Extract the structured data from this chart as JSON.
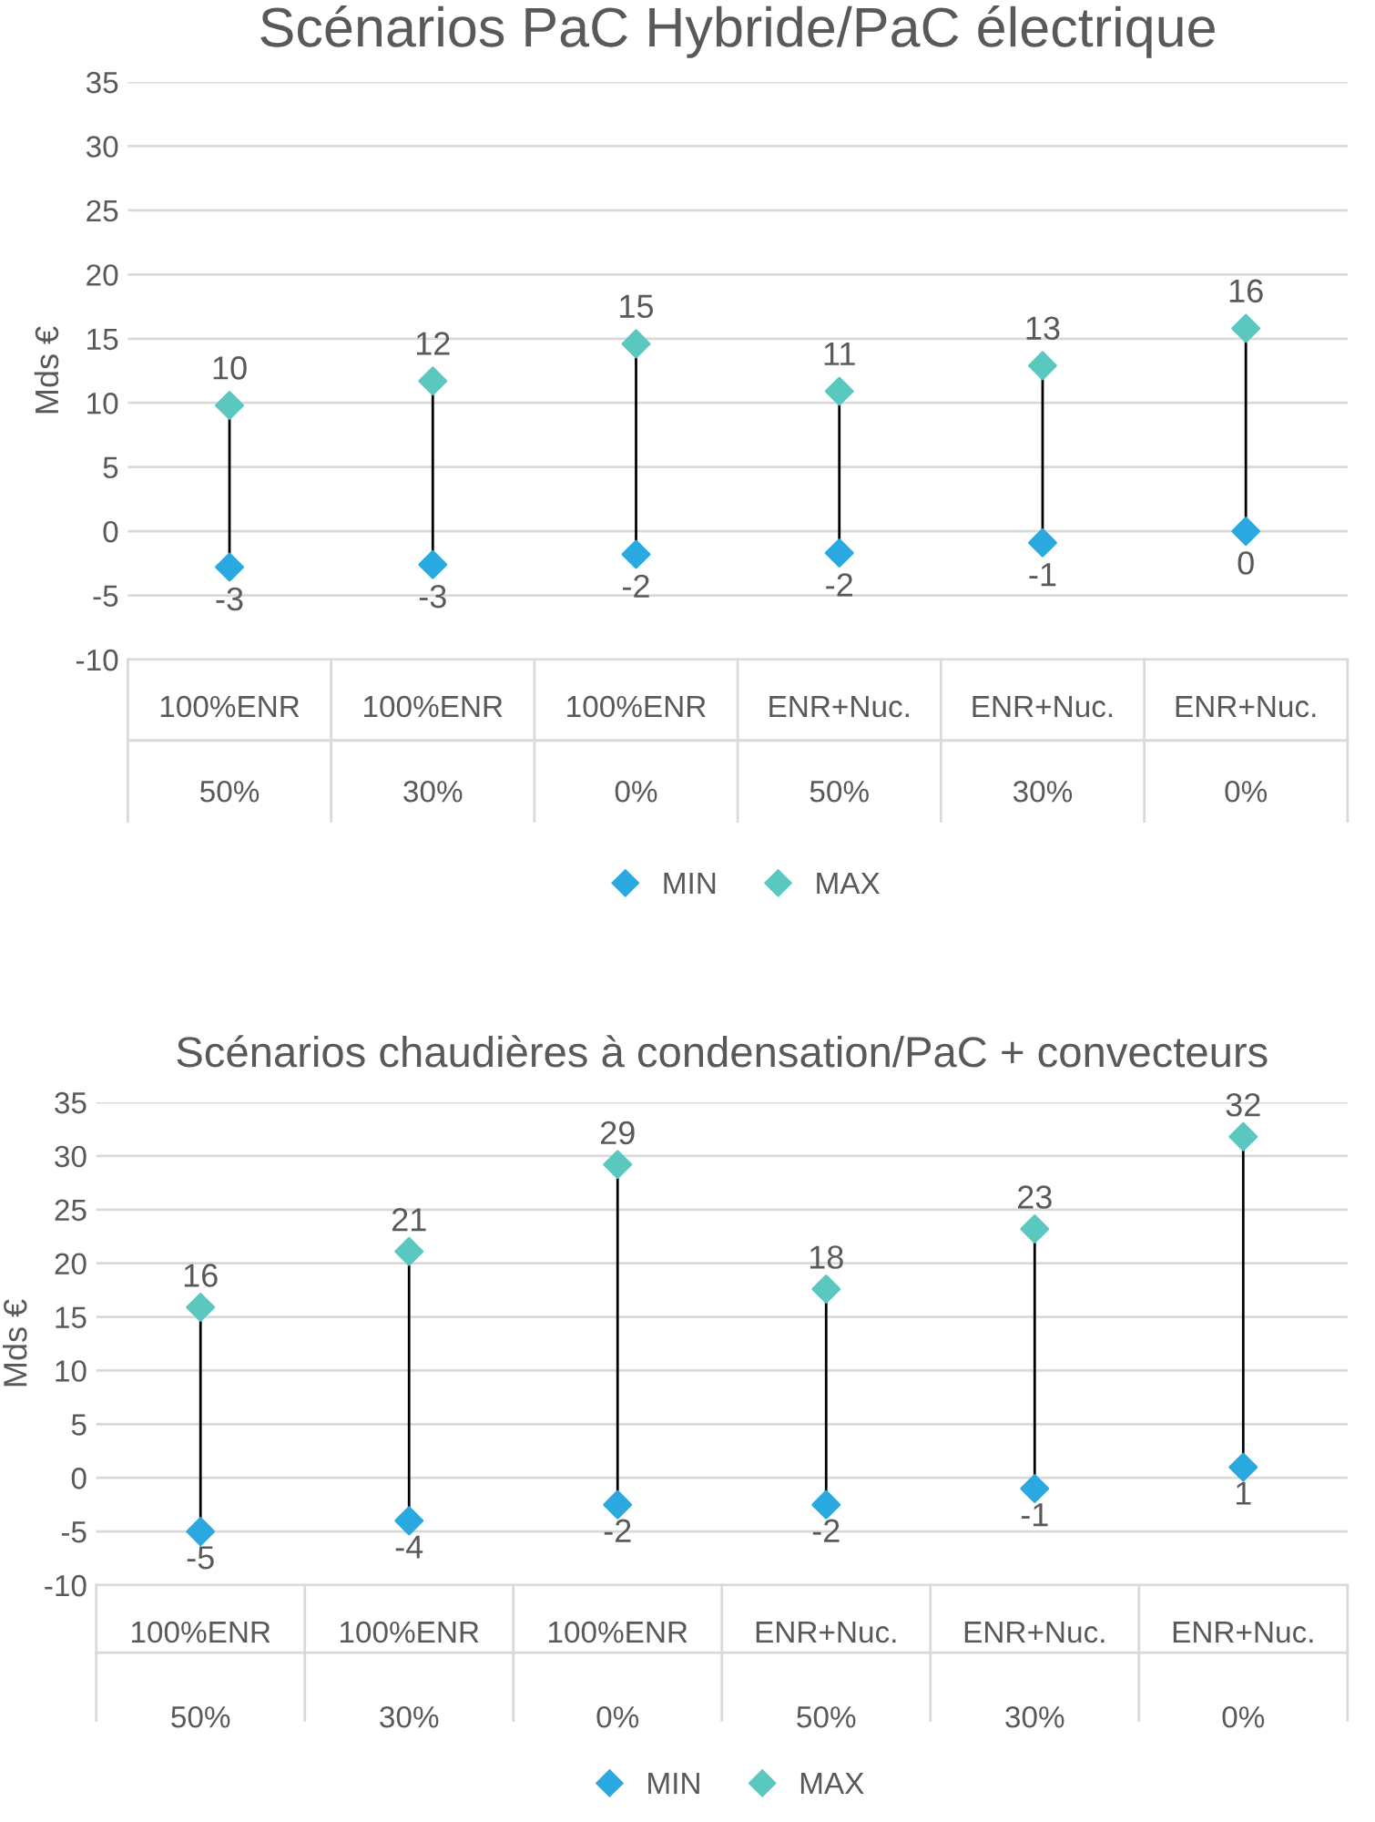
{
  "chart_data": [
    {
      "type": "scatter",
      "title": "Scénarios PaC Hybride/PaC électrique",
      "ylabel": "Mds €",
      "categories": [
        "100%ENR\n50%",
        "100%ENR\n30%",
        "100%ENR\n0%",
        "ENR+Nuc.\n50%",
        "ENR+Nuc.\n30%",
        "ENR+Nuc.\n0%"
      ],
      "series": [
        {
          "name": "MIN",
          "color": "#29a9e0",
          "values": [
            -2.8,
            -2.6,
            -1.8,
            -1.7,
            -0.9,
            0
          ],
          "value_labels": [
            "-3",
            "-3",
            "-2",
            "-2",
            "-1",
            "0"
          ]
        },
        {
          "name": "MAX",
          "color": "#5bc8c0",
          "values": [
            9.8,
            11.7,
            14.6,
            10.9,
            12.9,
            15.8
          ],
          "value_labels": [
            "10",
            "12",
            "15",
            "11",
            "13",
            "16"
          ]
        }
      ],
      "ylim": [
        -10,
        35
      ],
      "yticks": [
        -10,
        -5,
        0,
        5,
        10,
        15,
        20,
        25,
        30,
        35
      ],
      "grid": "y",
      "legend": "bottom",
      "marker": "diamond"
    },
    {
      "type": "scatter",
      "title": "Scénarios chaudières à condensation/PaC + convecteurs",
      "ylabel": "Mds €",
      "categories": [
        "100%ENR\n50%",
        "100%ENR\n30%",
        "100%ENR\n0%",
        "ENR+Nuc.\n50%",
        "ENR+Nuc.\n30%",
        "ENR+Nuc.\n0%"
      ],
      "series": [
        {
          "name": "MIN",
          "color": "#29a9e0",
          "values": [
            -5,
            -4,
            -2.5,
            -2.5,
            -1,
            1
          ],
          "value_labels": [
            "-5",
            "-4",
            "-2",
            "-2",
            "-1",
            "1"
          ]
        },
        {
          "name": "MAX",
          "color": "#5bc8c0",
          "values": [
            15.9,
            21.1,
            29.2,
            17.6,
            23.2,
            31.8
          ],
          "value_labels": [
            "16",
            "21",
            "29",
            "18",
            "23",
            "32"
          ]
        }
      ],
      "ylim": [
        -10,
        35
      ],
      "yticks": [
        -10,
        -5,
        0,
        5,
        10,
        15,
        20,
        25,
        30,
        35
      ],
      "grid": "y",
      "legend": "bottom",
      "marker": "diamond"
    }
  ]
}
